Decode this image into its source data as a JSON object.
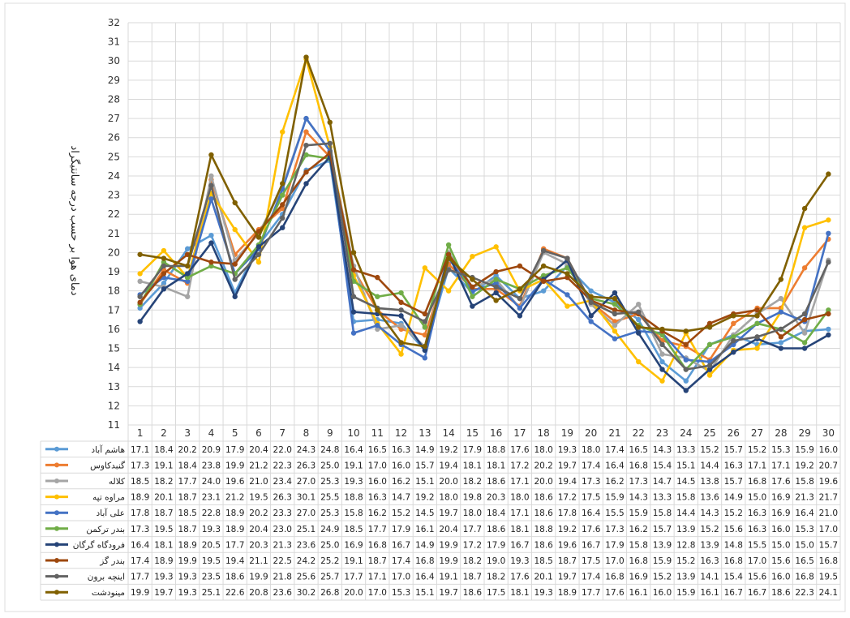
{
  "chart_data": {
    "type": "line",
    "title": "",
    "ylabel": "دمای هوا بر حسب درجه سانتیگراد",
    "xlabel": "",
    "ylim": [
      11,
      32
    ],
    "yticks": [
      11,
      12,
      13,
      14,
      15,
      16,
      17,
      18,
      19,
      20,
      21,
      22,
      23,
      24,
      25,
      26,
      27,
      28,
      29,
      30,
      31,
      32
    ],
    "grid": true,
    "legend": "data-table-below",
    "categories": [
      "1",
      "2",
      "3",
      "4",
      "5",
      "6",
      "7",
      "8",
      "9",
      "10",
      "11",
      "12",
      "13",
      "14",
      "15",
      "16",
      "17",
      "18",
      "19",
      "20",
      "21",
      "22",
      "23",
      "24",
      "25",
      "26",
      "27",
      "28",
      "29",
      "30"
    ],
    "series": [
      {
        "name": "هاشم آباد",
        "color": "#5b9bd5",
        "values": [
          17.1,
          18.4,
          20.2,
          20.9,
          17.9,
          20.4,
          22.0,
          24.3,
          24.8,
          16.4,
          16.5,
          16.3,
          14.9,
          19.2,
          17.9,
          18.8,
          17.6,
          18.0,
          19.3,
          18.0,
          17.4,
          16.5,
          14.3,
          13.3,
          15.2,
          15.7,
          15.2,
          15.3,
          15.9,
          16.0
        ]
      },
      {
        "name": "گنبدکاوس",
        "color": "#ed7d31",
        "values": [
          17.3,
          19.1,
          18.4,
          23.8,
          19.9,
          21.2,
          22.3,
          26.3,
          25.0,
          19.1,
          17.0,
          16.0,
          15.7,
          19.4,
          18.1,
          18.1,
          17.2,
          20.2,
          19.7,
          17.4,
          16.4,
          16.8,
          15.4,
          15.1,
          14.4,
          16.3,
          17.1,
          17.1,
          19.2,
          20.7
        ]
      },
      {
        "name": "کلاله",
        "color": "#a5a5a5",
        "values": [
          18.5,
          18.2,
          17.7,
          24.0,
          19.6,
          21.0,
          23.4,
          27.0,
          25.3,
          19.3,
          16.0,
          16.2,
          15.1,
          20.0,
          18.2,
          18.6,
          17.1,
          20.0,
          19.4,
          17.3,
          16.2,
          17.3,
          14.7,
          14.5,
          13.8,
          15.7,
          16.8,
          17.6,
          15.8,
          19.6
        ]
      },
      {
        "name": "مراوه تپه",
        "color": "#ffc000",
        "values": [
          18.9,
          20.1,
          18.7,
          23.1,
          21.2,
          19.5,
          26.3,
          30.1,
          25.5,
          18.8,
          16.3,
          14.7,
          19.2,
          18.0,
          19.8,
          20.3,
          18.0,
          18.6,
          17.2,
          17.5,
          15.9,
          14.3,
          13.3,
          15.8,
          13.6,
          14.9,
          15.0,
          16.9,
          21.3,
          21.7
        ]
      },
      {
        "name": "علی آباد",
        "color": "#4472c4",
        "values": [
          17.8,
          18.7,
          18.5,
          22.8,
          18.9,
          20.2,
          23.3,
          27.0,
          25.3,
          15.8,
          16.2,
          15.2,
          14.5,
          19.7,
          18.0,
          18.4,
          17.1,
          18.6,
          17.8,
          16.4,
          15.5,
          15.9,
          15.8,
          14.4,
          14.3,
          15.2,
          16.3,
          16.9,
          16.4,
          21.0
        ]
      },
      {
        "name": "بندر ترکمن",
        "color": "#70ad47",
        "values": [
          17.3,
          19.5,
          18.7,
          19.3,
          18.9,
          20.4,
          23.0,
          25.1,
          24.9,
          18.5,
          17.7,
          17.9,
          16.1,
          20.4,
          17.7,
          18.6,
          18.1,
          18.8,
          19.2,
          17.6,
          17.3,
          16.2,
          15.7,
          13.9,
          15.2,
          15.6,
          16.3,
          16.0,
          15.3,
          17.0
        ]
      },
      {
        "name": "فرودگاه گرگان",
        "color": "#264478",
        "values": [
          16.4,
          18.1,
          18.9,
          20.5,
          17.7,
          20.3,
          21.3,
          23.6,
          25.0,
          16.9,
          16.8,
          16.7,
          14.9,
          19.9,
          17.2,
          17.9,
          16.7,
          18.6,
          19.6,
          16.7,
          17.9,
          15.8,
          13.9,
          12.8,
          13.9,
          14.8,
          15.5,
          15.0,
          15.0,
          15.7
        ]
      },
      {
        "name": "بندر گز",
        "color": "#9e480e",
        "values": [
          17.4,
          18.9,
          19.9,
          19.5,
          19.4,
          21.1,
          22.5,
          24.2,
          25.2,
          19.1,
          18.7,
          17.4,
          16.8,
          19.9,
          18.2,
          19.0,
          19.3,
          18.5,
          18.7,
          17.5,
          17.0,
          16.8,
          15.9,
          15.2,
          16.3,
          16.8,
          17.0,
          15.6,
          16.5,
          16.8
        ]
      },
      {
        "name": "اینچه برون",
        "color": "#636363",
        "values": [
          17.7,
          19.3,
          19.3,
          23.5,
          18.6,
          19.9,
          21.8,
          25.6,
          25.7,
          17.7,
          17.1,
          17.0,
          16.4,
          19.1,
          18.7,
          18.2,
          17.6,
          20.1,
          19.7,
          17.4,
          16.8,
          16.9,
          15.2,
          13.9,
          14.1,
          15.4,
          15.6,
          16.0,
          16.8,
          19.5
        ]
      },
      {
        "name": "مینودشت",
        "color": "#806000",
        "values": [
          19.9,
          19.7,
          19.3,
          25.1,
          22.6,
          20.8,
          23.6,
          30.2,
          26.8,
          20.0,
          17.0,
          15.3,
          15.1,
          19.7,
          18.6,
          17.5,
          18.1,
          19.3,
          18.9,
          17.7,
          17.6,
          16.1,
          16.0,
          15.9,
          16.1,
          16.7,
          16.7,
          18.6,
          22.3,
          24.1
        ]
      }
    ]
  }
}
